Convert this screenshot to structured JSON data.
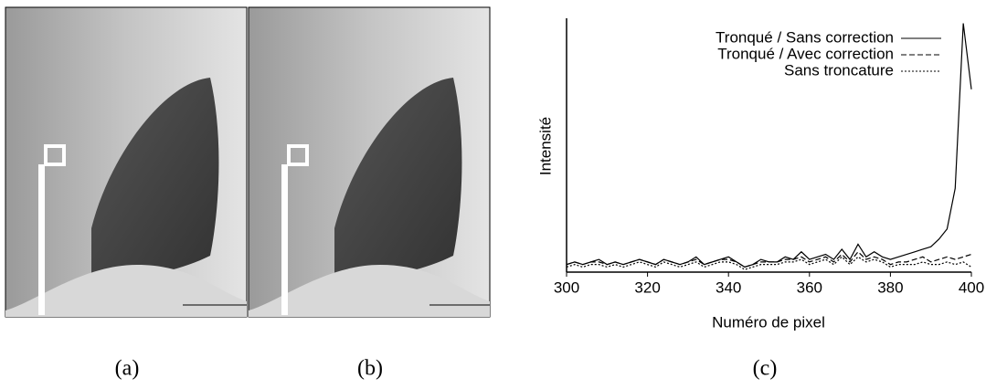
{
  "captions": [
    "(a)",
    "(b)",
    "(c)"
  ],
  "chart_data": {
    "type": "line",
    "xlabel": "Numéro de pixel",
    "ylabel": "Intensité",
    "x": [
      300,
      302,
      304,
      306,
      308,
      310,
      312,
      314,
      316,
      318,
      320,
      322,
      324,
      326,
      328,
      330,
      332,
      334,
      336,
      338,
      340,
      342,
      344,
      346,
      348,
      350,
      352,
      354,
      356,
      358,
      360,
      362,
      364,
      366,
      368,
      370,
      372,
      374,
      376,
      378,
      380,
      382,
      384,
      386,
      388,
      390,
      392,
      394,
      396,
      398,
      400
    ],
    "xlim": [
      300,
      400
    ],
    "xticks": [
      300,
      320,
      340,
      360,
      380,
      400
    ],
    "ylim": [
      0,
      100
    ],
    "legend": "upper right",
    "series": [
      {
        "name": "Tronqué / Sans correction",
        "color": "#000000",
        "linestyle": "solid",
        "values": [
          3,
          4,
          3,
          4,
          5,
          3,
          4,
          3,
          4,
          5,
          4,
          3,
          5,
          4,
          3,
          4,
          6,
          3,
          4,
          5,
          6,
          4,
          2,
          3,
          5,
          4,
          4,
          6,
          5,
          8,
          5,
          6,
          7,
          5,
          9,
          5,
          11,
          6,
          8,
          6,
          5,
          6,
          7,
          8,
          9,
          10,
          13,
          17,
          33,
          98,
          72
        ]
      },
      {
        "name": "Tronqué / Avec correction",
        "color": "#000000",
        "linestyle": "dashed",
        "values": [
          3,
          4,
          3,
          4,
          4,
          3,
          4,
          3,
          4,
          5,
          4,
          3,
          5,
          4,
          3,
          4,
          5,
          3,
          4,
          5,
          5,
          4,
          2,
          3,
          4,
          4,
          4,
          5,
          5,
          6,
          4,
          5,
          6,
          4,
          7,
          4,
          8,
          5,
          6,
          5,
          3,
          4,
          4,
          5,
          6,
          4,
          5,
          6,
          5,
          6,
          7
        ]
      },
      {
        "name": "Sans troncature",
        "color": "#000000",
        "linestyle": "dotted",
        "values": [
          2,
          3,
          2,
          3,
          3,
          2,
          3,
          2,
          3,
          4,
          3,
          2,
          4,
          3,
          2,
          3,
          4,
          2,
          3,
          4,
          4,
          3,
          1,
          2,
          3,
          3,
          3,
          4,
          4,
          5,
          3,
          4,
          5,
          3,
          6,
          3,
          6,
          4,
          5,
          4,
          2,
          3,
          3,
          3,
          4,
          3,
          3,
          4,
          3,
          4,
          2
        ]
      }
    ]
  }
}
